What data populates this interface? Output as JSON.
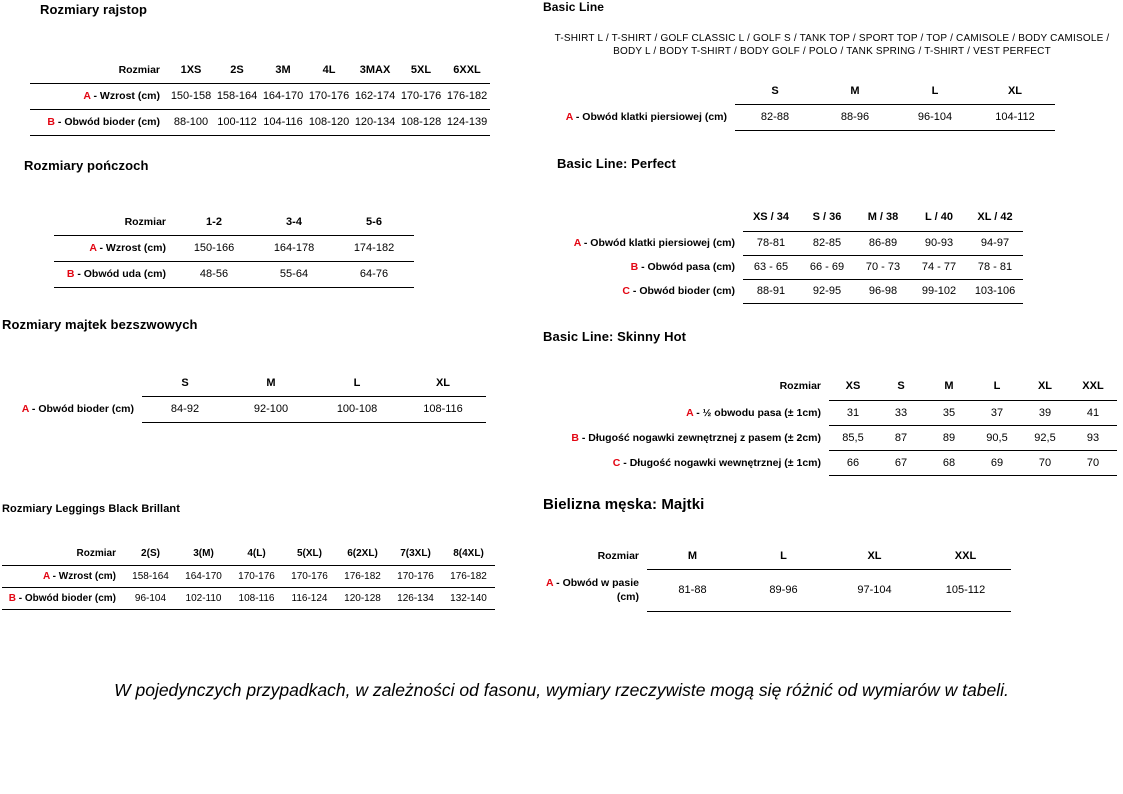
{
  "colors": {
    "accent_red": "#e30613",
    "line": "#000000"
  },
  "sections": [
    {
      "title": "Rozmiary rajstop",
      "corner_label": "Rozmiar",
      "columns": [
        "1XS",
        "2S",
        "3M",
        "4L",
        "3MAX",
        "5XL",
        "6XXL"
      ],
      "rows": [
        {
          "prefix": "A",
          "label": "Wzrost (cm)",
          "values": [
            "150-158",
            "158-164",
            "164-170",
            "170-176",
            "162-174",
            "170-176",
            "176-182"
          ]
        },
        {
          "prefix": "B",
          "label": "Obwód bioder (cm)",
          "values": [
            "88-100",
            "100-112",
            "104-116",
            "108-120",
            "120-134",
            "108-128",
            "124-139"
          ]
        }
      ]
    },
    {
      "title": "Rozmiary pończoch",
      "corner_label": "Rozmiar",
      "columns": [
        "1-2",
        "3-4",
        "5-6"
      ],
      "rows": [
        {
          "prefix": "A",
          "label": "Wzrost (cm)",
          "values": [
            "150-166",
            "164-178",
            "174-182"
          ]
        },
        {
          "prefix": "B",
          "label": "Obwód uda (cm)",
          "values": [
            "48-56",
            "55-64",
            "64-76"
          ]
        }
      ]
    },
    {
      "title": "Rozmiary majtek bezszwowych",
      "corner_label": "",
      "columns": [
        "S",
        "M",
        "L",
        "XL"
      ],
      "rows": [
        {
          "prefix": "A",
          "label": "Obwód bioder (cm)",
          "values": [
            "84-92",
            "92-100",
            "100-108",
            "108-116"
          ]
        }
      ]
    },
    {
      "title": "Rozmiary Leggings Black Brillant",
      "corner_label": "Rozmiar",
      "columns": [
        "2(S)",
        "3(M)",
        "4(L)",
        "5(XL)",
        "6(2XL)",
        "7(3XL)",
        "8(4XL)"
      ],
      "rows": [
        {
          "prefix": "A",
          "label": "Wzrost (cm)",
          "values": [
            "158-164",
            "164-170",
            "170-176",
            "170-176",
            "176-182",
            "170-176",
            "176-182"
          ]
        },
        {
          "prefix": "B",
          "label": "Obwód bioder (cm)",
          "values": [
            "96-104",
            "102-110",
            "108-116",
            "116-124",
            "120-128",
            "126-134",
            "132-140"
          ]
        }
      ]
    },
    {
      "title": "Basic Line",
      "subtitle": "T-SHIRT L / T-SHIRT / GOLF CLASSIC L / GOLF S / TANK TOP / SPORT TOP / TOP / CAMISOLE / BODY CAMISOLE / BODY L / BODY T-SHIRT / BODY GOLF / POLO / TANK SPRING / T-SHIRT / VEST PERFECT",
      "corner_label": "",
      "columns": [
        "S",
        "M",
        "L",
        "XL"
      ],
      "rows": [
        {
          "prefix": "A",
          "label": "Obwód klatki piersiowej (cm)",
          "values": [
            "82-88",
            "88-96",
            "96-104",
            "104-112"
          ]
        }
      ]
    },
    {
      "title": "Basic Line: Perfect",
      "corner_label": "",
      "columns": [
        "XS / 34",
        "S / 36",
        "M / 38",
        "L / 40",
        "XL / 42"
      ],
      "rows": [
        {
          "prefix": "A",
          "label": "Obwód klatki piersiowej (cm)",
          "values": [
            "78-81",
            "82-85",
            "86-89",
            "90-93",
            "94-97"
          ]
        },
        {
          "prefix": "B",
          "label": "Obwód pasa (cm)",
          "values": [
            "63 - 65",
            "66 - 69",
            "70 - 73",
            "74 - 77",
            "78 - 81"
          ]
        },
        {
          "prefix": "C",
          "label": "Obwód bioder (cm)",
          "values": [
            "88-91",
            "92-95",
            "96-98",
            "99-102",
            "103-106"
          ]
        }
      ]
    },
    {
      "title": "Basic Line: Skinny Hot",
      "corner_label": "Rozmiar",
      "columns": [
        "XS",
        "S",
        "M",
        "L",
        "XL",
        "XXL"
      ],
      "rows": [
        {
          "prefix": "A",
          "label": "½ obwodu pasa (± 1cm)",
          "values": [
            "31",
            "33",
            "35",
            "37",
            "39",
            "41"
          ]
        },
        {
          "prefix": "B",
          "label": "Długość nogawki zewnętrznej z pasem (± 2cm)",
          "values": [
            "85,5",
            "87",
            "89",
            "90,5",
            "92,5",
            "93"
          ]
        },
        {
          "prefix": "C",
          "label": "Długość nogawki wewnętrznej (± 1cm)",
          "values": [
            "66",
            "67",
            "68",
            "69",
            "70",
            "70"
          ]
        }
      ]
    },
    {
      "title": "Bielizna męska: Majtki",
      "corner_label": "Rozmiar",
      "columns": [
        "M",
        "L",
        "XL",
        "XXL"
      ],
      "rows": [
        {
          "prefix": "A",
          "label": "Obwód w pasie (cm)",
          "values": [
            "81-88",
            "89-96",
            "97-104",
            "105-112"
          ]
        }
      ]
    }
  ],
  "footer": {
    "note": "W pojedynczych przypadkach, w zależności od fasonu, wymiary rzeczywiste mogą się różnić od wymiarów w tabeli."
  }
}
